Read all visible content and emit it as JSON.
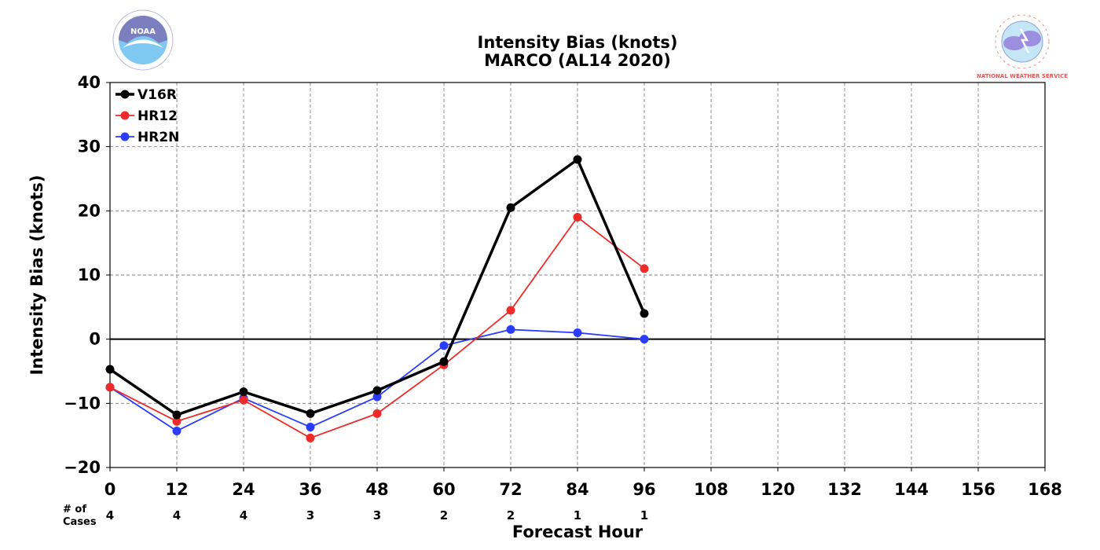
{
  "chart_data": {
    "type": "line",
    "title": "Intensity Bias (knots)",
    "subtitle": "MARCO (AL14 2020)",
    "xlabel": "Forecast Hour",
    "ylabel": "Intensity Bias (knots)",
    "xlim": [
      0,
      168
    ],
    "ylim": [
      -20,
      40
    ],
    "xticks": [
      0,
      12,
      24,
      36,
      48,
      60,
      72,
      84,
      96,
      108,
      120,
      132,
      144,
      156,
      168
    ],
    "yticks": [
      -20,
      -10,
      0,
      10,
      20,
      30,
      40
    ],
    "ytick_labels": [
      "−20",
      "−10",
      "0",
      "10",
      "20",
      "30",
      "40"
    ],
    "grid": true,
    "legend_position": "top-left",
    "series": [
      {
        "name": "V16R",
        "color": "#000000",
        "x": [
          0,
          12,
          24,
          36,
          48,
          60,
          72,
          84,
          96
        ],
        "values": [
          -4.7,
          -11.8,
          -8.2,
          -11.6,
          -8.0,
          -3.5,
          20.5,
          28.0,
          4.0
        ]
      },
      {
        "name": "HR12",
        "color": "#ee2a2a",
        "x": [
          0,
          12,
          24,
          36,
          48,
          60,
          72,
          84,
          96
        ],
        "values": [
          -7.5,
          -12.8,
          -9.5,
          -15.4,
          -11.6,
          -4.0,
          4.5,
          19.0,
          11.0
        ]
      },
      {
        "name": "HR2N",
        "color": "#2a3cff",
        "x": [
          0,
          12,
          24,
          36,
          48,
          60,
          72,
          84,
          96
        ],
        "values": [
          -7.5,
          -14.3,
          -9.2,
          -13.7,
          -9.0,
          -1.0,
          1.5,
          1.0,
          0.0
        ]
      }
    ],
    "cases_label_line1": "# of",
    "cases_label_line2": "Cases",
    "cases": [
      {
        "x": 0,
        "n": "4"
      },
      {
        "x": 12,
        "n": "4"
      },
      {
        "x": 24,
        "n": "4"
      },
      {
        "x": 36,
        "n": "3"
      },
      {
        "x": 48,
        "n": "3"
      },
      {
        "x": 60,
        "n": "2"
      },
      {
        "x": 72,
        "n": "2"
      },
      {
        "x": 84,
        "n": "1"
      },
      {
        "x": 96,
        "n": "1"
      }
    ]
  },
  "logos": {
    "left": {
      "name": "noaa-logo",
      "text": "NOAA"
    },
    "right": {
      "name": "nws-logo",
      "text": "NATIONAL WEATHER SERVICE"
    }
  }
}
